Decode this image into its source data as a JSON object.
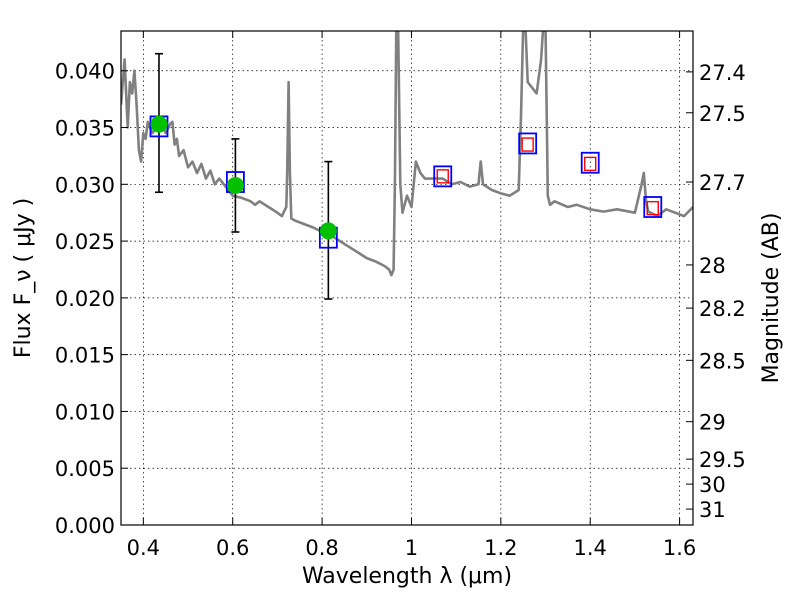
{
  "chart_data": {
    "type": "scatter",
    "xlabel": "Wavelength  λ (μm)",
    "ylabel": "Flux  F_ν  ( μJy )",
    "ylabel_right": "Magnitude (AB)",
    "xlim": [
      0.35,
      1.63
    ],
    "ylim": [
      0.0,
      0.0435
    ],
    "grid": true,
    "x_ticks": [
      {
        "v": 0.4,
        "label": "0.4"
      },
      {
        "v": 0.6,
        "label": "0.6"
      },
      {
        "v": 0.8,
        "label": "0.8"
      },
      {
        "v": 1.0,
        "label": "1"
      },
      {
        "v": 1.2,
        "label": "1.2"
      },
      {
        "v": 1.4,
        "label": "1.4"
      },
      {
        "v": 1.6,
        "label": "1.6"
      }
    ],
    "y_ticks": [
      {
        "v": 0.0,
        "label": "0.000"
      },
      {
        "v": 0.005,
        "label": "0.005"
      },
      {
        "v": 0.01,
        "label": "0.010"
      },
      {
        "v": 0.015,
        "label": "0.015"
      },
      {
        "v": 0.02,
        "label": "0.020"
      },
      {
        "v": 0.025,
        "label": "0.025"
      },
      {
        "v": 0.03,
        "label": "0.030"
      },
      {
        "v": 0.035,
        "label": "0.035"
      },
      {
        "v": 0.04,
        "label": "0.040"
      }
    ],
    "mag_ticks": [
      {
        "label": "27.4",
        "flux": 0.0399
      },
      {
        "label": "27.5",
        "flux": 0.0363
      },
      {
        "label": "27.7",
        "flux": 0.0302
      },
      {
        "label": "28",
        "flux": 0.0229
      },
      {
        "label": "28.2",
        "flux": 0.0191
      },
      {
        "label": "28.5",
        "flux": 0.0145
      },
      {
        "label": "29",
        "flux": 0.0091
      },
      {
        "label": "29.5",
        "flux": 0.0058
      },
      {
        "label": "30",
        "flux": 0.0036
      },
      {
        "label": "31",
        "flux": 0.0014
      }
    ],
    "series": [
      {
        "kind": "line",
        "color": "#808080",
        "x": [
          0.35,
          0.358,
          0.365,
          0.37,
          0.375,
          0.38,
          0.385,
          0.39,
          0.395,
          0.4,
          0.405,
          0.41,
          0.42,
          0.43,
          0.44,
          0.45,
          0.46,
          0.465,
          0.47,
          0.475,
          0.48,
          0.49,
          0.5,
          0.51,
          0.52,
          0.53,
          0.54,
          0.55,
          0.56,
          0.57,
          0.58,
          0.59,
          0.6,
          0.62,
          0.64,
          0.65,
          0.66,
          0.68,
          0.7,
          0.71,
          0.72,
          0.722,
          0.725,
          0.728,
          0.731,
          0.74,
          0.76,
          0.78,
          0.8,
          0.82,
          0.84,
          0.86,
          0.88,
          0.9,
          0.92,
          0.93,
          0.94,
          0.95,
          0.955,
          0.96,
          0.963,
          0.966,
          0.968,
          0.97,
          0.975,
          0.98,
          0.99,
          1.0,
          1.01,
          1.02,
          1.03,
          1.05,
          1.07,
          1.09,
          1.11,
          1.13,
          1.15,
          1.155,
          1.16,
          1.18,
          1.2,
          1.22,
          1.24,
          1.245,
          1.25,
          1.255,
          1.26,
          1.28,
          1.29,
          1.295,
          1.3,
          1.305,
          1.31,
          1.32,
          1.35,
          1.37,
          1.4,
          1.43,
          1.46,
          1.5,
          1.515,
          1.52,
          1.525,
          1.53,
          1.55,
          1.57,
          1.59,
          1.61,
          1.63
        ],
        "y": [
          0.037,
          0.041,
          0.035,
          0.039,
          0.038,
          0.04,
          0.037,
          0.033,
          0.032,
          0.0345,
          0.034,
          0.0355,
          0.0345,
          0.035,
          0.0355,
          0.0345,
          0.0353,
          0.0355,
          0.0335,
          0.034,
          0.0325,
          0.033,
          0.0315,
          0.032,
          0.031,
          0.0318,
          0.0305,
          0.0312,
          0.03,
          0.0305,
          0.03,
          0.0295,
          0.029,
          0.0288,
          0.0285,
          0.0282,
          0.0285,
          0.028,
          0.0275,
          0.0272,
          0.028,
          0.031,
          0.039,
          0.031,
          0.027,
          0.0268,
          0.0265,
          0.0262,
          0.0258,
          0.0255,
          0.025,
          0.0245,
          0.024,
          0.0235,
          0.0232,
          0.023,
          0.0228,
          0.0225,
          0.022,
          0.0225,
          0.03,
          0.044,
          0.044,
          0.044,
          0.03,
          0.0275,
          0.029,
          0.028,
          0.032,
          0.031,
          0.0305,
          0.0305,
          0.0305,
          0.03,
          0.0302,
          0.0298,
          0.03,
          0.032,
          0.03,
          0.0295,
          0.0292,
          0.029,
          0.0295,
          0.036,
          0.044,
          0.044,
          0.039,
          0.038,
          0.041,
          0.044,
          0.044,
          0.029,
          0.0282,
          0.0285,
          0.028,
          0.0282,
          0.0278,
          0.0276,
          0.0278,
          0.0275,
          0.03,
          0.031,
          0.0285,
          0.0276,
          0.0272,
          0.0278,
          0.0275,
          0.0272,
          0.028
        ]
      },
      {
        "kind": "errorbar",
        "color": "#000000",
        "points": [
          {
            "x": 0.435,
            "y": 0.0353,
            "low": 0.0293,
            "high": 0.0415
          },
          {
            "x": 0.606,
            "y": 0.0299,
            "low": 0.0258,
            "high": 0.034
          },
          {
            "x": 0.814,
            "y": 0.0259,
            "low": 0.0199,
            "high": 0.032
          }
        ]
      },
      {
        "kind": "marker-square",
        "color": "#0000ff",
        "points": [
          {
            "x": 0.435,
            "y": 0.0351
          },
          {
            "x": 0.606,
            "y": 0.0302
          },
          {
            "x": 0.814,
            "y": 0.0253
          },
          {
            "x": 1.07,
            "y": 0.0307
          },
          {
            "x": 1.26,
            "y": 0.0336
          },
          {
            "x": 1.4,
            "y": 0.0319
          },
          {
            "x": 1.54,
            "y": 0.028
          }
        ]
      },
      {
        "kind": "marker-square-small",
        "color": "#ff0000",
        "points": [
          {
            "x": 1.07,
            "y": 0.0307
          },
          {
            "x": 1.26,
            "y": 0.0335
          },
          {
            "x": 1.4,
            "y": 0.0318
          },
          {
            "x": 1.54,
            "y": 0.0279
          }
        ]
      },
      {
        "kind": "marker-circle",
        "color": "#00c000",
        "points": [
          {
            "x": 0.435,
            "y": 0.0353
          },
          {
            "x": 0.606,
            "y": 0.0299
          },
          {
            "x": 0.814,
            "y": 0.0259
          }
        ]
      }
    ]
  }
}
